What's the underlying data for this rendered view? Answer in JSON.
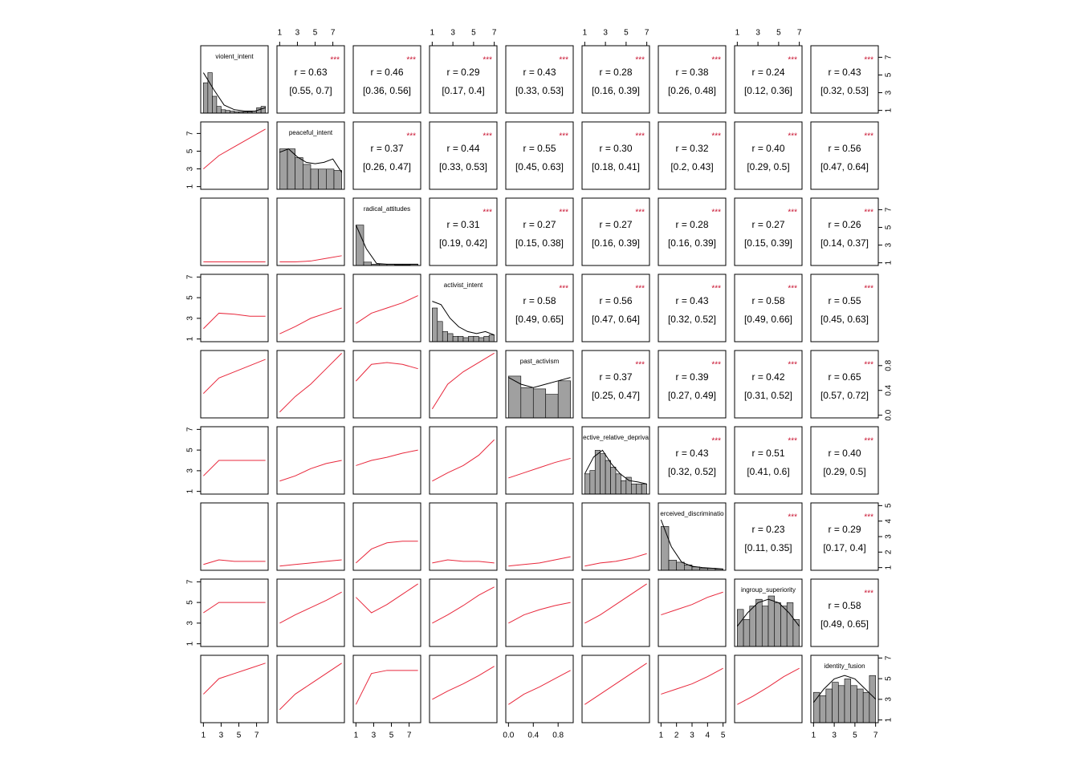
{
  "chart_data": {
    "type": "pairs",
    "variables": [
      {
        "name": "violent_intent",
        "lim": [
          1,
          8
        ],
        "ticks": [
          1,
          3,
          5,
          7
        ],
        "hist": [
          0.45,
          0.6,
          0.25,
          0.1,
          0.05,
          0.04,
          0.03,
          0.02,
          0.02,
          0.02,
          0.02,
          0.03,
          0.08,
          0.1
        ],
        "density": [
          0.6,
          0.35,
          0.12,
          0.05,
          0.03,
          0.03,
          0.08
        ]
      },
      {
        "name": "peaceful_intent",
        "lim": [
          1,
          8
        ],
        "ticks": [
          1,
          3,
          5,
          7
        ],
        "hist": [
          0.6,
          0.6,
          0.47,
          0.37,
          0.3,
          0.3,
          0.3,
          0.28
        ],
        "density": [
          0.55,
          0.6,
          0.48,
          0.4,
          0.38,
          0.4,
          0.45,
          0.25
        ]
      },
      {
        "name": "radical_attitudes",
        "lim": [
          1,
          8
        ],
        "ticks": [
          1,
          3,
          5,
          7
        ],
        "hist": [
          0.6,
          0.05,
          0.02,
          0.02,
          0.02,
          0.01,
          0.01,
          0.02
        ],
        "density": [
          0.6,
          0.25,
          0.03,
          0.02,
          0.02,
          0.02,
          0.02
        ]
      },
      {
        "name": "activist_intent",
        "lim": [
          1,
          7
        ],
        "ticks": [
          1,
          3,
          5,
          7
        ],
        "hist": [
          0.5,
          0.3,
          0.15,
          0.12,
          0.08,
          0.08,
          0.06,
          0.08,
          0.08,
          0.06,
          0.08,
          0.1
        ],
        "density": [
          0.6,
          0.55,
          0.35,
          0.22,
          0.15,
          0.12,
          0.15,
          0.1
        ]
      },
      {
        "name": "past_activism",
        "lim": [
          0,
          1
        ],
        "ticks": [
          {
            "value": 0,
            "label": "0.0"
          },
          0.4,
          0.8
        ],
        "hist": [
          0.62,
          0.45,
          0.43,
          0.35,
          0.55
        ],
        "density": [
          0.6,
          0.5,
          0.45,
          0.5,
          0.55,
          0.6
        ]
      },
      {
        "name": "ective_relative_depriva",
        "lim": [
          1,
          7
        ],
        "ticks": [
          1,
          3,
          5,
          7
        ],
        "hist": [
          0.3,
          0.35,
          0.65,
          0.6,
          0.5,
          0.4,
          0.3,
          0.2,
          0.25,
          0.15,
          0.15,
          0.15
        ],
        "density": [
          0.3,
          0.55,
          0.65,
          0.45,
          0.3,
          0.2,
          0.18,
          0.15
        ]
      },
      {
        "name": "erceived_discriminatio",
        "lim": [
          1,
          5
        ],
        "ticks": [
          1,
          2,
          3,
          4,
          5
        ],
        "hist": [
          0.65,
          0.15,
          0.12,
          0.08,
          0.05,
          0.03,
          0.03,
          0.02
        ],
        "density": [
          0.75,
          0.35,
          0.12,
          0.06,
          0.04,
          0.03,
          0.02
        ]
      },
      {
        "name": "ingroup_superiority",
        "lim": [
          1,
          7
        ],
        "ticks": [
          1,
          3,
          5,
          7
        ],
        "hist": [
          0.55,
          0.4,
          0.6,
          0.7,
          0.6,
          0.75,
          0.65,
          0.6,
          0.65,
          0.4
        ],
        "density": [
          0.3,
          0.5,
          0.65,
          0.7,
          0.65,
          0.5,
          0.3
        ]
      },
      {
        "name": "identity_fusion",
        "lim": [
          1,
          7
        ],
        "ticks": [
          1,
          3,
          5,
          7
        ],
        "hist": [
          0.45,
          0.4,
          0.5,
          0.6,
          0.55,
          0.65,
          0.55,
          0.5,
          0.45,
          0.7
        ],
        "density": [
          0.3,
          0.5,
          0.65,
          0.7,
          0.65,
          0.5,
          0.35
        ]
      }
    ],
    "correlations": [
      [
        {
          "r": "r = 0.63",
          "ci": "[0.55, 0.7]",
          "sig": "***"
        },
        {
          "r": "r = 0.46",
          "ci": "[0.36, 0.56]",
          "sig": "***"
        },
        {
          "r": "r = 0.29",
          "ci": "[0.17, 0.4]",
          "sig": "***"
        },
        {
          "r": "r = 0.43",
          "ci": "[0.33, 0.53]",
          "sig": "***"
        },
        {
          "r": "r = 0.28",
          "ci": "[0.16, 0.39]",
          "sig": "***"
        },
        {
          "r": "r = 0.38",
          "ci": "[0.26, 0.48]",
          "sig": "***"
        },
        {
          "r": "r = 0.24",
          "ci": "[0.12, 0.36]",
          "sig": "***"
        },
        {
          "r": "r = 0.43",
          "ci": "[0.32, 0.53]",
          "sig": "***"
        }
      ],
      [
        {
          "r": "r = 0.37",
          "ci": "[0.26, 0.47]",
          "sig": "***"
        },
        {
          "r": "r = 0.44",
          "ci": "[0.33, 0.53]",
          "sig": "***"
        },
        {
          "r": "r = 0.55",
          "ci": "[0.45, 0.63]",
          "sig": "***"
        },
        {
          "r": "r = 0.30",
          "ci": "[0.18, 0.41]",
          "sig": "***"
        },
        {
          "r": "r = 0.32",
          "ci": "[0.2, 0.43]",
          "sig": "***"
        },
        {
          "r": "r = 0.40",
          "ci": "[0.29, 0.5]",
          "sig": "***"
        },
        {
          "r": "r = 0.56",
          "ci": "[0.47, 0.64]",
          "sig": "***"
        }
      ],
      [
        {
          "r": "r = 0.31",
          "ci": "[0.19, 0.42]",
          "sig": "***"
        },
        {
          "r": "r = 0.27",
          "ci": "[0.15, 0.38]",
          "sig": "***"
        },
        {
          "r": "r = 0.27",
          "ci": "[0.16, 0.39]",
          "sig": "***"
        },
        {
          "r": "r = 0.28",
          "ci": "[0.16, 0.39]",
          "sig": "***"
        },
        {
          "r": "r = 0.27",
          "ci": "[0.15, 0.39]",
          "sig": "***"
        },
        {
          "r": "r = 0.26",
          "ci": "[0.14, 0.37]",
          "sig": "***"
        }
      ],
      [
        {
          "r": "r = 0.58",
          "ci": "[0.49, 0.65]",
          "sig": "***"
        },
        {
          "r": "r = 0.56",
          "ci": "[0.47, 0.64]",
          "sig": "***"
        },
        {
          "r": "r = 0.43",
          "ci": "[0.32, 0.52]",
          "sig": "***"
        },
        {
          "r": "r = 0.58",
          "ci": "[0.49, 0.66]",
          "sig": "***"
        },
        {
          "r": "r = 0.55",
          "ci": "[0.45, 0.63]",
          "sig": "***"
        }
      ],
      [
        {
          "r": "r = 0.37",
          "ci": "[0.25, 0.47]",
          "sig": "***"
        },
        {
          "r": "r = 0.39",
          "ci": "[0.27, 0.49]",
          "sig": "***"
        },
        {
          "r": "r = 0.42",
          "ci": "[0.31, 0.52]",
          "sig": "***"
        },
        {
          "r": "r = 0.65",
          "ci": "[0.57, 0.72]",
          "sig": "***"
        }
      ],
      [
        {
          "r": "r = 0.43",
          "ci": "[0.32, 0.52]",
          "sig": "***"
        },
        {
          "r": "r = 0.51",
          "ci": "[0.41, 0.6]",
          "sig": "***"
        },
        {
          "r": "r = 0.40",
          "ci": "[0.29, 0.5]",
          "sig": "***"
        }
      ],
      [
        {
          "r": "r = 0.23",
          "ci": "[0.11, 0.35]",
          "sig": "***"
        },
        {
          "r": "r = 0.29",
          "ci": "[0.17, 0.4]",
          "sig": "***"
        }
      ],
      [
        {
          "r": "r = 0.58",
          "ci": "[0.49, 0.65]",
          "sig": "***"
        }
      ]
    ],
    "trend_color": "#e8283c",
    "trends": [
      [
        [
          3,
          4.5,
          5.5,
          6.5,
          7.5
        ]
      ],
      [
        [
          1.1,
          1.1,
          1.1,
          1.1,
          1.1
        ],
        [
          1.1,
          1.1,
          1.2,
          1.5,
          1.8
        ]
      ],
      [
        [
          2,
          3.5,
          3.4,
          3.2,
          3.2
        ],
        [
          1.5,
          2.2,
          3,
          3.5,
          4
        ],
        [
          2.5,
          3.5,
          4,
          4.5,
          5.2
        ]
      ],
      [
        [
          0.35,
          0.6,
          0.7,
          0.8,
          0.9
        ],
        [
          0.05,
          0.3,
          0.5,
          0.75,
          1.0
        ],
        [
          0.55,
          0.82,
          0.85,
          0.82,
          0.75
        ],
        [
          0.1,
          0.5,
          0.7,
          0.85,
          1.0
        ]
      ],
      [
        [
          2.5,
          4,
          4,
          4,
          4
        ],
        [
          2,
          2.5,
          3.2,
          3.7,
          4
        ],
        [
          3.5,
          4,
          4.3,
          4.7,
          5
        ],
        [
          2,
          2.8,
          3.5,
          4.5,
          6
        ],
        [
          2.3,
          2.8,
          3.3,
          3.8,
          4.2
        ]
      ],
      [
        [
          1.2,
          1.5,
          1.4,
          1.4,
          1.4
        ],
        [
          1.1,
          1.2,
          1.3,
          1.4,
          1.5
        ],
        [
          1.3,
          2.2,
          2.6,
          2.7,
          2.7
        ],
        [
          1.3,
          1.5,
          1.4,
          1.4,
          1.3
        ],
        [
          1.1,
          1.2,
          1.3,
          1.5,
          1.7
        ],
        [
          1.1,
          1.3,
          1.4,
          1.6,
          1.9
        ]
      ],
      [
        [
          4,
          5,
          5,
          5,
          5
        ],
        [
          3,
          3.8,
          4.5,
          5.2,
          6
        ],
        [
          5.5,
          4,
          4.8,
          5.8,
          6.8
        ],
        [
          3,
          3.8,
          4.7,
          5.7,
          6.5
        ],
        [
          3,
          3.8,
          4.3,
          4.7,
          5
        ],
        [
          3,
          3.8,
          4.8,
          5.8,
          6.8
        ],
        [
          3.8,
          4.3,
          4.8,
          5.5,
          6
        ]
      ],
      [
        [
          3.5,
          5,
          5.5,
          6,
          6.5
        ],
        [
          2,
          3.5,
          4.5,
          5.5,
          6.5
        ],
        [
          2.5,
          5.5,
          5.8,
          5.8,
          5.8
        ],
        [
          3,
          3.8,
          4.5,
          5.3,
          6.2
        ],
        [
          2.5,
          3.5,
          4.2,
          5,
          5.8
        ],
        [
          2.5,
          3.5,
          4.5,
          5.5,
          6.5
        ],
        [
          3.5,
          4,
          4.5,
          5.2,
          6
        ],
        [
          2.5,
          3.3,
          4.2,
          5.2,
          6
        ]
      ]
    ]
  }
}
